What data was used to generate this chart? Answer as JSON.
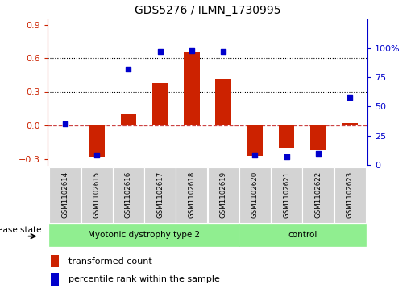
{
  "title": "GDS5276 / ILMN_1730995",
  "samples": [
    "GSM1102614",
    "GSM1102615",
    "GSM1102616",
    "GSM1102617",
    "GSM1102618",
    "GSM1102619",
    "GSM1102620",
    "GSM1102621",
    "GSM1102622",
    "GSM1102623"
  ],
  "red_values": [
    0.0,
    -0.28,
    0.1,
    0.38,
    0.65,
    0.42,
    -0.27,
    -0.2,
    -0.22,
    0.02
  ],
  "blue_values": [
    35,
    8,
    82,
    97,
    98,
    97,
    8,
    7,
    10,
    58
  ],
  "group1_label": "Myotonic dystrophy type 2",
  "group1_count": 6,
  "group2_label": "control",
  "group2_count": 4,
  "ylim_left": [
    -0.35,
    0.95
  ],
  "ylim_right": [
    0,
    125
  ],
  "yticks_left": [
    -0.3,
    0.0,
    0.3,
    0.6,
    0.9
  ],
  "yticks_right": [
    0,
    25,
    50,
    75,
    100
  ],
  "bar_color": "#CC2200",
  "dot_color": "#0000CC",
  "bar_width": 0.5,
  "hline_dotted": [
    0.3,
    0.6
  ],
  "hline_dashed_color": "#CC4444",
  "disease_state_label": "disease state",
  "legend_entries": [
    "transformed count",
    "percentile rank within the sample"
  ],
  "legend_colors": [
    "#CC2200",
    "#0000CC"
  ],
  "tick_label_fontsize": 7,
  "axis_color_left": "#CC2200",
  "axis_color_right": "#0000CC",
  "sample_box_color": "#D3D3D3",
  "group_box_color": "#90EE90",
  "title_fontsize": 10
}
